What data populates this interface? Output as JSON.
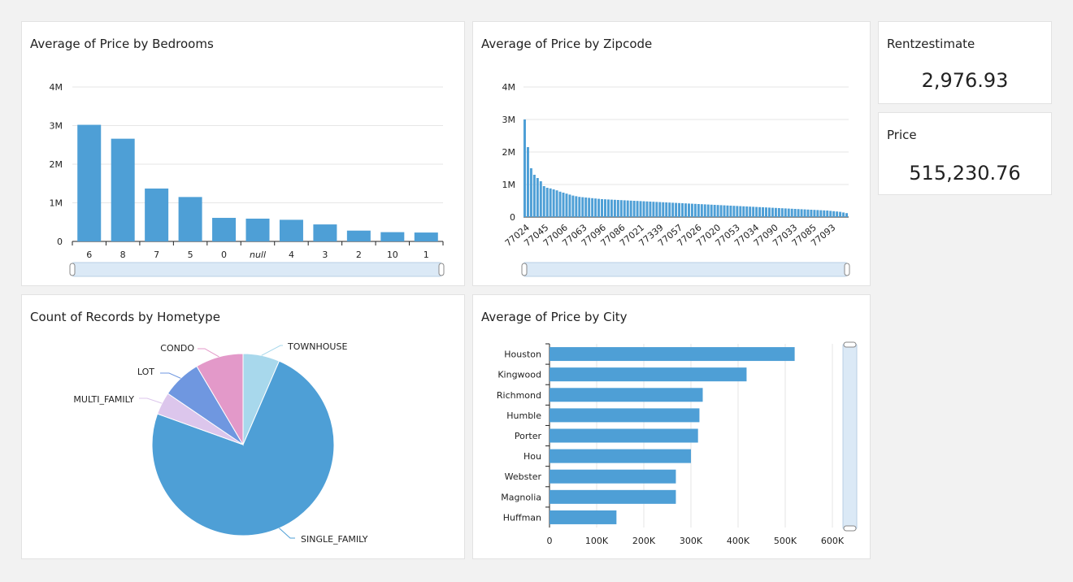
{
  "kpis": [
    {
      "title": "Rentzestimate",
      "value": "2,976.93"
    },
    {
      "title": "Price",
      "value": "515,230.76"
    }
  ],
  "chart_data": [
    {
      "type": "bar",
      "title": "Average of Price by Bedrooms",
      "categories": [
        "6",
        "8",
        "7",
        "5",
        "0",
        "null",
        "4",
        "3",
        "2",
        "10",
        "1"
      ],
      "values": [
        3020000,
        2660000,
        1370000,
        1150000,
        610000,
        590000,
        560000,
        440000,
        280000,
        240000,
        230000
      ],
      "yticks": [
        "0",
        "1M",
        "2M",
        "3M",
        "4M"
      ],
      "ylim": [
        0,
        4000000
      ],
      "grid": true,
      "colors": {
        "bar": "#4e9fd6"
      }
    },
    {
      "type": "bar",
      "title": "Average of Price by Zipcode",
      "tick_labels": [
        "77024",
        "77045",
        "77006",
        "77063",
        "77096",
        "77086",
        "77021",
        "77339",
        "77057",
        "77026",
        "77020",
        "77053",
        "77034",
        "77090",
        "77033",
        "77085",
        "77093"
      ],
      "values": [
        3000000,
        2150000,
        1500000,
        1300000,
        1200000,
        1100000,
        950000,
        900000,
        880000,
        850000,
        820000,
        780000,
        750000,
        720000,
        690000,
        660000,
        640000,
        620000,
        610000,
        600000,
        590000,
        580000,
        570000,
        560000,
        550000,
        545000,
        540000,
        535000,
        530000,
        525000,
        520000,
        515000,
        510000,
        505000,
        500000,
        495000,
        490000,
        485000,
        480000,
        475000,
        470000,
        465000,
        460000,
        455000,
        450000,
        445000,
        440000,
        435000,
        430000,
        425000,
        420000,
        415000,
        410000,
        405000,
        400000,
        395000,
        390000,
        385000,
        380000,
        375000,
        370000,
        365000,
        360000,
        355000,
        350000,
        345000,
        340000,
        335000,
        330000,
        325000,
        320000,
        315000,
        310000,
        305000,
        300000,
        295000,
        290000,
        285000,
        280000,
        275000,
        270000,
        265000,
        260000,
        255000,
        250000,
        245000,
        240000,
        235000,
        230000,
        225000,
        220000,
        215000,
        210000,
        205000,
        200000,
        190000,
        180000,
        170000,
        160000,
        140000,
        120000
      ],
      "yticks": [
        "0",
        "1M",
        "2M",
        "3M",
        "4M"
      ],
      "ylim": [
        0,
        4000000
      ],
      "grid": true,
      "colors": {
        "bar": "#4e9fd6"
      }
    },
    {
      "type": "pie",
      "title": "Count of Records by Hometype",
      "labels": [
        "TOWNHOUSE",
        "SINGLE_FAMILY",
        "MULTI_FAMILY",
        "LOT",
        "CONDO"
      ],
      "values": [
        6.5,
        74,
        4,
        7,
        8.5
      ],
      "colors": [
        "#a8d8ec",
        "#4e9fd6",
        "#dcc6ec",
        "#6f97e0",
        "#e399c9"
      ]
    },
    {
      "type": "bar",
      "orientation": "horizontal",
      "title": "Average of Price by City",
      "categories": [
        "Houston",
        "Kingwood",
        "Richmond",
        "Humble",
        "Porter",
        "Hou",
        "Webster",
        "Magnolia",
        "Huffman"
      ],
      "values": [
        520000,
        418000,
        325000,
        318000,
        315000,
        300000,
        268000,
        268000,
        142000
      ],
      "xticks": [
        "0",
        "100K",
        "200K",
        "300K",
        "400K",
        "500K",
        "600K"
      ],
      "xlim": [
        0,
        600000
      ],
      "grid": true,
      "colors": {
        "bar": "#4e9fd6"
      }
    }
  ]
}
